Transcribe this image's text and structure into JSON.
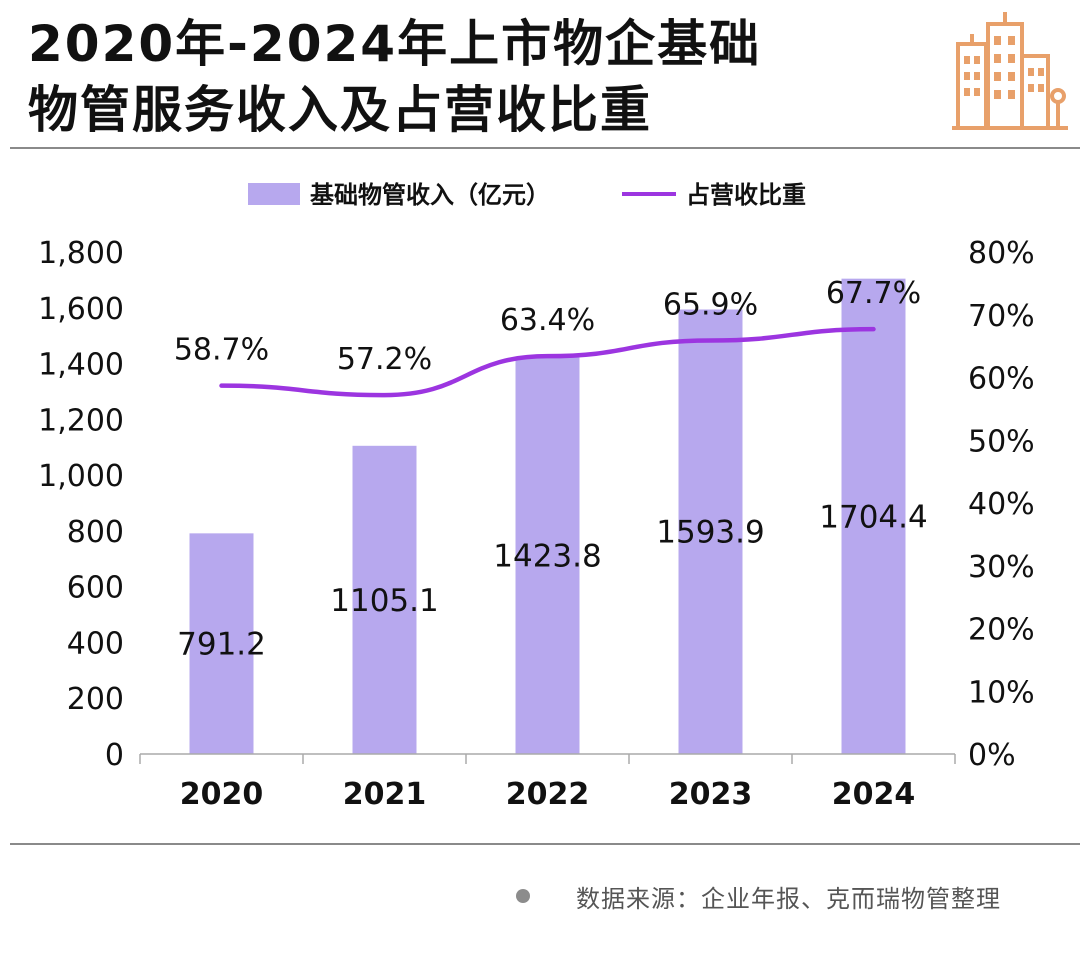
{
  "header": {
    "title_line1": "2020年-2024年上市物企基础",
    "title_line2": "物管服务收入及占营收比重",
    "logo": "building-logo-icon",
    "accent_color": "#E8A06A"
  },
  "chart_data": {
    "type": "bar",
    "categories": [
      "2020",
      "2021",
      "2022",
      "2023",
      "2024"
    ],
    "series": [
      {
        "name": "基础物管收入（亿元）",
        "type": "bar",
        "axis": "left",
        "color": "#B7A8EE",
        "values": [
          791.2,
          1105.1,
          1423.8,
          1593.9,
          1704.4
        ],
        "labels": [
          "791.2",
          "1105.1",
          "1423.8",
          "1593.9",
          "1704.4"
        ]
      },
      {
        "name": "占营收比重",
        "type": "line",
        "axis": "right",
        "color": "#9C35E0",
        "values": [
          58.7,
          57.2,
          63.4,
          65.9,
          67.7
        ],
        "labels": [
          "58.7%",
          "57.2%",
          "63.4%",
          "65.9%",
          "67.7%"
        ]
      }
    ],
    "y_left": {
      "min": 0,
      "max": 1800,
      "ticks": [
        0,
        200,
        400,
        600,
        800,
        1000,
        1200,
        1400,
        1600,
        1800
      ],
      "tick_labels": [
        "0",
        "200",
        "400",
        "600",
        "800",
        "1,000",
        "1,200",
        "1,400",
        "1,600",
        "1,800"
      ]
    },
    "y_right": {
      "min": 0,
      "max": 80,
      "ticks": [
        0,
        10,
        20,
        30,
        40,
        50,
        60,
        70,
        80
      ],
      "tick_labels": [
        "0%",
        "10%",
        "20%",
        "30%",
        "40%",
        "50%",
        "60%",
        "70%",
        "80%"
      ]
    },
    "legend_position": "top-center",
    "grid": false
  },
  "footer": {
    "source": "数据来源：企业年报、克而瑞物管整理"
  }
}
